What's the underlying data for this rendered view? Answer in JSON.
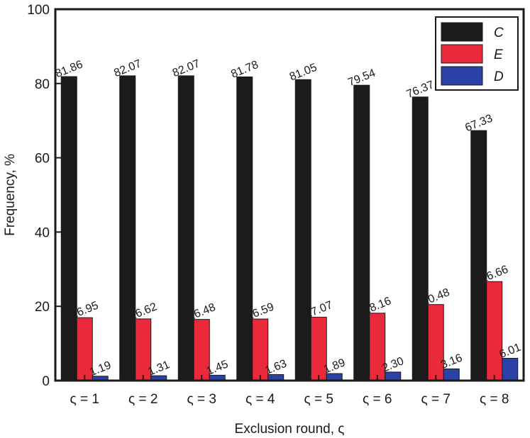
{
  "chart_data": {
    "type": "bar",
    "xlabel": "Exclusion round, ς",
    "ylabel": "Frequency, %",
    "ylim": [
      0,
      100
    ],
    "yticks": [
      0,
      20,
      40,
      60,
      80,
      100
    ],
    "categories": [
      "ς = 1",
      "ς = 2",
      "ς = 3",
      "ς = 4",
      "ς = 5",
      "ς = 6",
      "ς = 7",
      "ς = 8"
    ],
    "legend_position": "top-right",
    "grid": false,
    "series": [
      {
        "name": "C",
        "color": "#1c1a1a",
        "values": [
          81.86,
          82.07,
          82.07,
          81.78,
          81.05,
          79.54,
          76.37,
          67.33
        ],
        "labels": [
          "81.86",
          "82.07",
          "82.07",
          "81.78",
          "81.05",
          "79.54",
          "76.37",
          "67.33"
        ]
      },
      {
        "name": "E",
        "color": "#ea2a3a",
        "values": [
          16.95,
          16.62,
          16.48,
          16.59,
          17.07,
          18.16,
          20.48,
          26.66
        ],
        "labels": [
          "16.95",
          "16.62",
          "16.48",
          "16.59",
          "17.07",
          "18.16",
          "20.48",
          "26.66"
        ]
      },
      {
        "name": "D",
        "color": "#2a41a6",
        "values": [
          1.19,
          1.31,
          1.45,
          1.63,
          1.89,
          2.3,
          3.16,
          6.01
        ],
        "labels": [
          "1.19",
          "1.31",
          "1.45",
          "1.63",
          "1.89",
          "2.30",
          "3.16",
          "6.01"
        ]
      }
    ]
  }
}
